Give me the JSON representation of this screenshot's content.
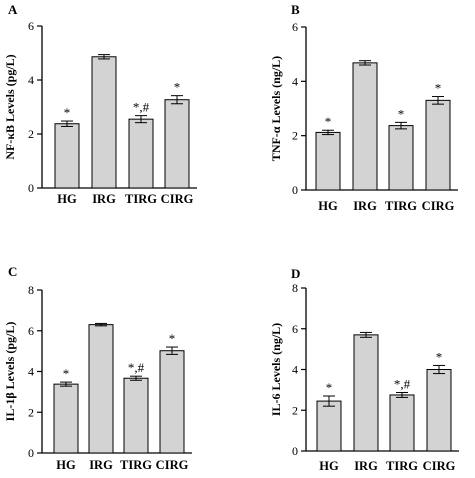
{
  "chart_data": [
    {
      "type": "bar",
      "panel": "A",
      "ylabel": "NF-κB Levels (pg/L)",
      "ylim": [
        0,
        6
      ],
      "yticks": [
        0,
        2,
        4,
        6
      ],
      "categories": [
        "HG",
        "IRG",
        "TIRG",
        "CIRG"
      ],
      "values": [
        2.38,
        4.86,
        2.55,
        3.27
      ],
      "errors": [
        0.1,
        0.08,
        0.13,
        0.15
      ],
      "annotations": [
        "*",
        "",
        "*,#",
        "*"
      ],
      "bar_color": "#d3d3d3"
    },
    {
      "type": "bar",
      "panel": "B",
      "ylabel": "TNF-α Levels (ng/L)",
      "ylim": [
        0,
        6
      ],
      "yticks": [
        0,
        2,
        4,
        6
      ],
      "categories": [
        "HG",
        "IRG",
        "TIRG",
        "CIRG"
      ],
      "values": [
        2.12,
        4.68,
        2.37,
        3.3
      ],
      "errors": [
        0.08,
        0.08,
        0.12,
        0.14
      ],
      "annotations": [
        "*",
        "",
        "*",
        "*"
      ],
      "bar_color": "#d3d3d3"
    },
    {
      "type": "bar",
      "panel": "C",
      "ylabel": "IL-1β Levels (pg/L)",
      "ylim": [
        0,
        8
      ],
      "yticks": [
        0,
        2,
        4,
        6,
        8
      ],
      "categories": [
        "HG",
        "IRG",
        "TIRG",
        "CIRG"
      ],
      "values": [
        3.38,
        6.3,
        3.67,
        5.02
      ],
      "errors": [
        0.1,
        0.06,
        0.1,
        0.18
      ],
      "annotations": [
        "*",
        "",
        "*,#",
        "*"
      ],
      "bar_color": "#d3d3d3"
    },
    {
      "type": "bar",
      "panel": "D",
      "ylabel": "IL-6 Levels (ng/L)",
      "ylim": [
        0,
        8
      ],
      "yticks": [
        0,
        2,
        4,
        6,
        8
      ],
      "categories": [
        "HG",
        "IRG",
        "TIRG",
        "CIRG"
      ],
      "values": [
        2.45,
        5.7,
        2.75,
        4.0
      ],
      "errors": [
        0.25,
        0.12,
        0.12,
        0.2
      ],
      "annotations": [
        "*",
        "",
        "*,#",
        "*"
      ],
      "bar_color": "#d3d3d3"
    }
  ]
}
